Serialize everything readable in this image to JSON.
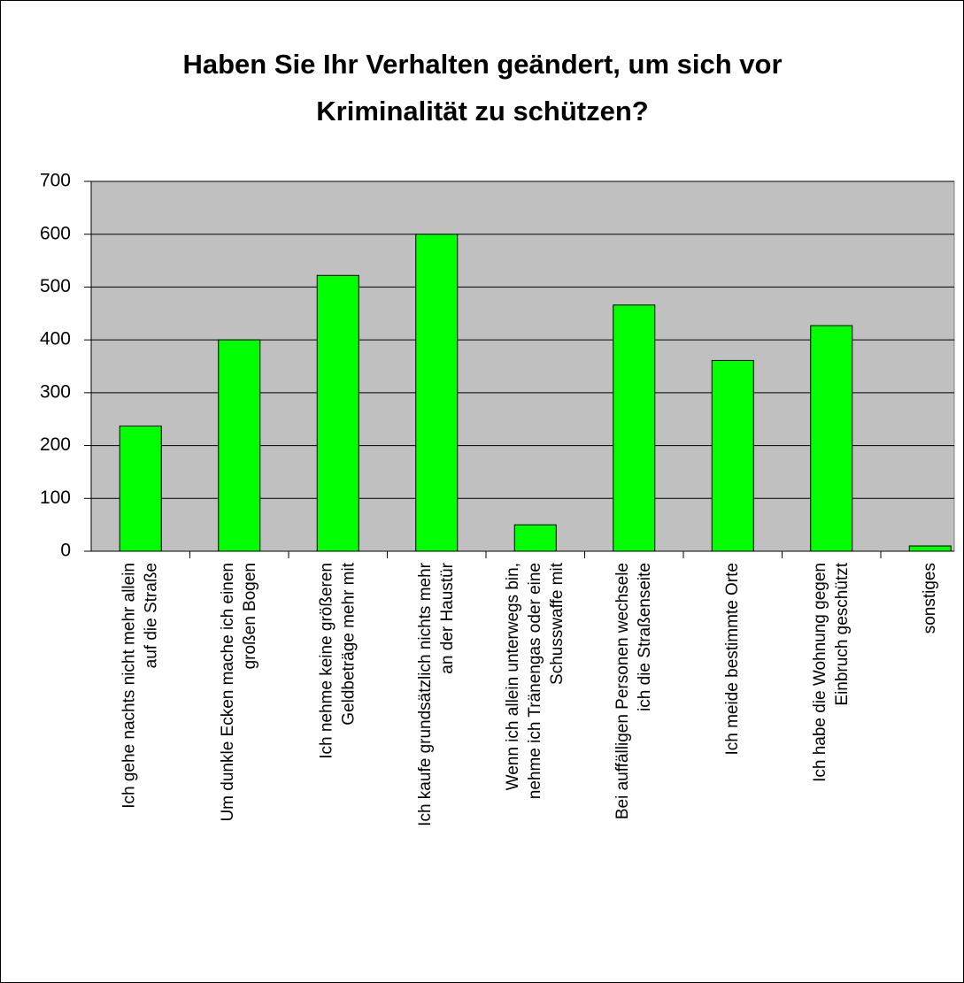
{
  "chart_data": {
    "type": "bar",
    "title": [
      "Haben Sie Ihr Verhalten geändert, um sich vor",
      "Kriminalität zu schützen?"
    ],
    "categories": [
      [
        "Ich gehe nachts nicht mehr allein",
        "auf die Straße"
      ],
      [
        "Um dunkle Ecken mache ich einen",
        "großen Bogen"
      ],
      [
        "Ich nehme keine größeren",
        "Geldbeträge mehr mit"
      ],
      [
        "Ich kaufe grundsätzlich nichts mehr",
        "an der Haustür"
      ],
      [
        "Wenn ich allein unterwegs bin,",
        "nehme ich Tränengas oder eine",
        "Schusswaffe mit"
      ],
      [
        "Bei auffälligen Personen wechsele",
        "ich die Straßenseite"
      ],
      [
        "Ich meide bestimmte Orte"
      ],
      [
        "Ich habe die Wohnung gegen",
        "Einbruch geschützt"
      ],
      [
        "sonstiges"
      ]
    ],
    "values": [
      237,
      400,
      522,
      600,
      50,
      466,
      361,
      427,
      10
    ],
    "color": "#00ff00",
    "ylim": [
      0,
      700
    ],
    "yticks": [
      0,
      100,
      200,
      300,
      400,
      500,
      600,
      700
    ],
    "grid": true
  }
}
